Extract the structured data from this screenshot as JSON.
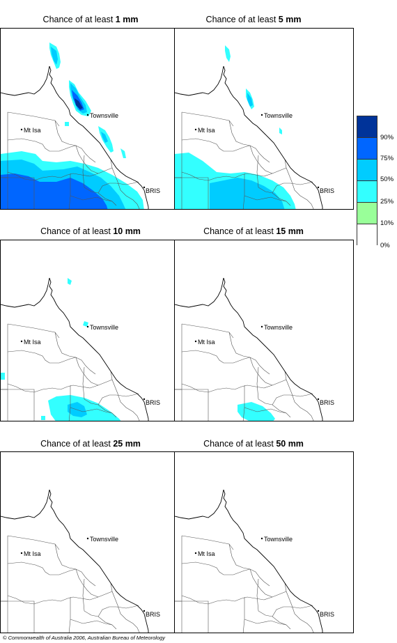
{
  "panels": [
    {
      "title_prefix": "Chance of at least ",
      "amount": "1 mm"
    },
    {
      "title_prefix": "Chance of at least ",
      "amount": "5 mm"
    },
    {
      "title_prefix": "Chance of at least ",
      "amount": "10 mm"
    },
    {
      "title_prefix": "Chance of at least ",
      "amount": "15 mm"
    },
    {
      "title_prefix": "Chance of at least ",
      "amount": "25 mm"
    },
    {
      "title_prefix": "Chance of at least ",
      "amount": "50 mm"
    }
  ],
  "places": {
    "townsville": "Townsville",
    "mt_isa": "Mt Isa",
    "bris": "BRIS"
  },
  "legend": {
    "labels": [
      "90%",
      "75%",
      "50%",
      "25%",
      "10%",
      "0%"
    ],
    "colors": [
      "#003399",
      "#0066ff",
      "#00ccff",
      "#33ffff",
      "#99ff99",
      "#ffffff"
    ]
  },
  "copyright": "© Commonwealth of Australia 2006, Australian Bureau of Meteorology"
}
